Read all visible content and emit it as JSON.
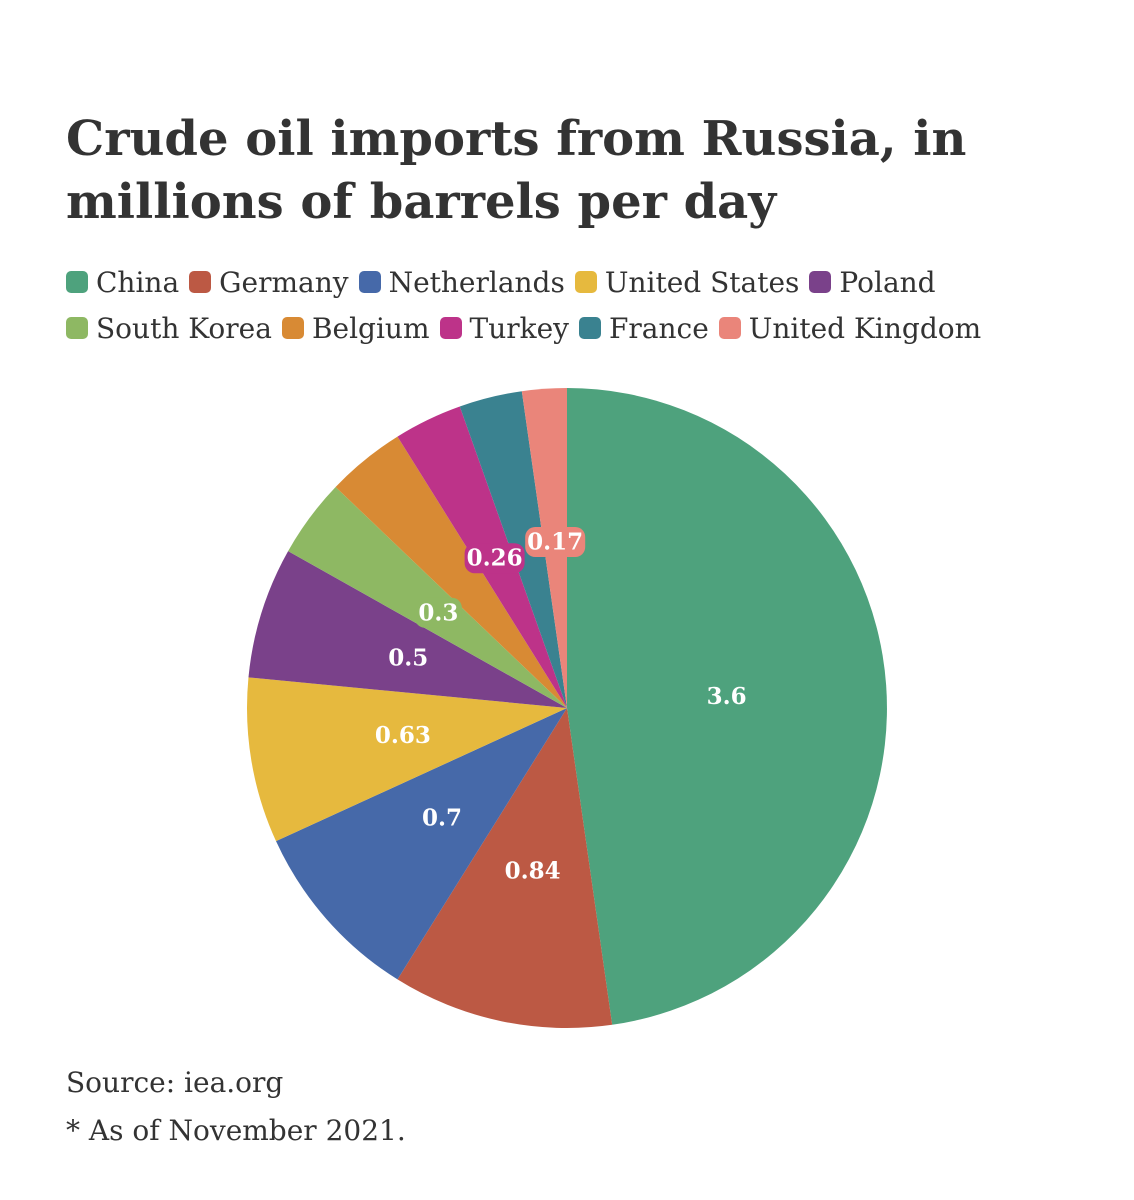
{
  "chart_data": {
    "type": "pie",
    "title": "Crude oil imports from Russia, in millions of barrels per day",
    "categories": [
      "China",
      "Germany",
      "Netherlands",
      "United States",
      "Poland",
      "South Korea",
      "Belgium",
      "Turkey",
      "France",
      "United Kingdom"
    ],
    "values": [
      3.6,
      0.84,
      0.7,
      0.63,
      0.5,
      0.3,
      0.3,
      0.26,
      0.24,
      0.17
    ],
    "value_labels": [
      "3.6",
      "0.84",
      "0.7",
      "0.63",
      "0.5",
      "0.3",
      "",
      "0.26",
      "",
      "0.17"
    ],
    "colors": [
      "#4ea27d",
      "#bc5944",
      "#4669a9",
      "#e6b93e",
      "#7a418a",
      "#8eb863",
      "#d88a34",
      "#bd3389",
      "#3a8290",
      "#ea857a"
    ],
    "legend_position": "top-left",
    "start": "12 o'clock",
    "direction": "clockwise"
  },
  "notes": {
    "source": "Source: iea.org",
    "date": "* As of November 2021."
  }
}
